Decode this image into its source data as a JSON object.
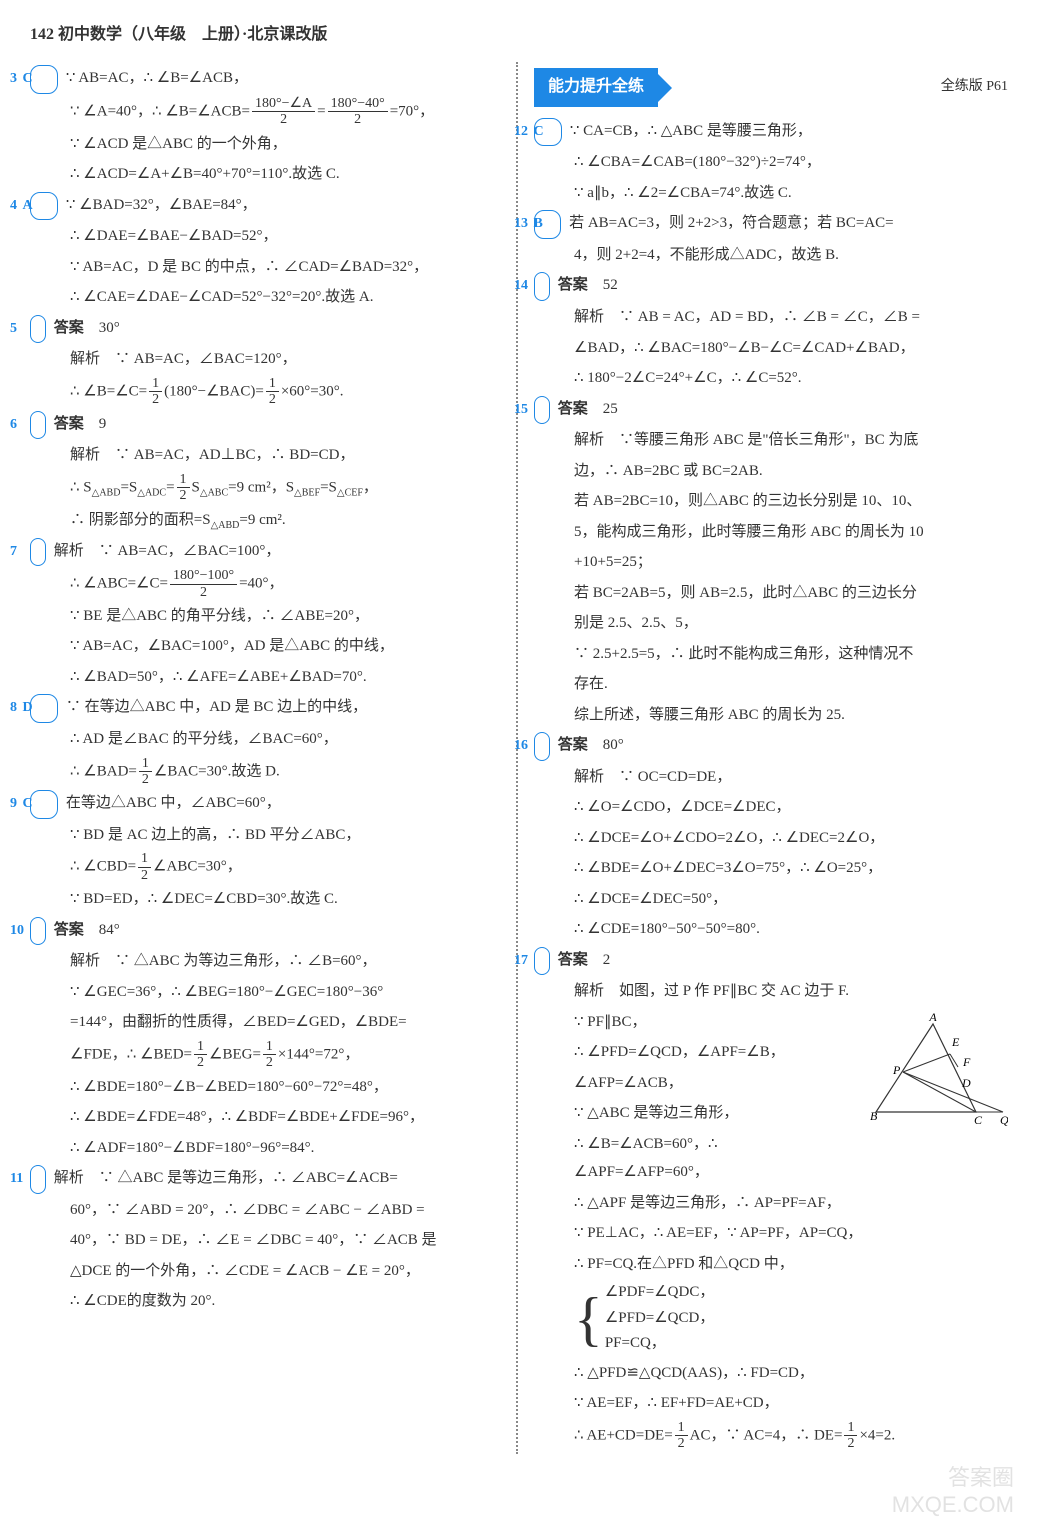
{
  "header": "142 初中数学（八年级　上册）·北京课改版",
  "banner": {
    "title": "能力提升全练",
    "right": "全练版 P61"
  },
  "left": [
    {
      "n": "3",
      "letter": "C",
      "lines": [
        "∵ AB=AC，∴ ∠B=∠ACB，",
        "∵ ∠A=40°，∴ ∠B=∠ACB=@FRAC{180°−∠A}{2}@=@FRAC{180°−40°}{2}@=70°，",
        "∵ ∠ACD 是△ABC 的一个外角，",
        "∴ ∠ACD=∠A+∠B=40°+70°=110°.故选 C."
      ]
    },
    {
      "n": "4",
      "letter": "A",
      "lines": [
        "∵ ∠BAD=32°，∠BAE=84°，",
        "∴ ∠DAE=∠BAE−∠BAD=52°，",
        "∵ AB=AC，D 是 BC 的中点，∴ ∠CAD=∠BAD=32°，",
        "∴ ∠CAE=∠DAE−∠CAD=52°−32°=20°.故选 A."
      ]
    },
    {
      "n": "5",
      "ans": "30°",
      "lines": [
        "解析　∵ AB=AC，∠BAC=120°，",
        "∴ ∠B=∠C=@FRAC{1}{2}@(180°−∠BAC)=@FRAC{1}{2}@×60°=30°."
      ]
    },
    {
      "n": "6",
      "ans": "9",
      "lines": [
        "解析　∵ AB=AC，AD⊥BC，∴ BD=CD，",
        "∴ S@SUB{△ABD}@=S@SUB{△ADC}@=@FRAC{1}{2}@S@SUB{△ABC}@=9 cm²，S@SUB{△BEF}@=S@SUB{△CEF}@，",
        "∴ 阴影部分的面积=S@SUB{△ABD}@=9 cm²."
      ]
    },
    {
      "n": "7",
      "lines": [
        "解析　∵ AB=AC，∠BAC=100°，",
        "∴ ∠ABC=∠C=@FRAC{180°−100°}{2}@=40°，",
        "∵ BE 是△ABC 的角平分线，∴ ∠ABE=20°，",
        "∵ AB=AC，∠BAC=100°，AD 是△ABC 的中线，",
        "∴ ∠BAD=50°，∴ ∠AFE=∠ABE+∠BAD=70°."
      ]
    },
    {
      "n": "8",
      "letter": "D",
      "lines": [
        "∵ 在等边△ABC 中，AD 是 BC 边上的中线，",
        "∴ AD 是∠BAC 的平分线，∠BAC=60°，",
        "∴ ∠BAD=@FRAC{1}{2}@∠BAC=30°.故选 D."
      ]
    },
    {
      "n": "9",
      "letter": "C",
      "lines": [
        "在等边△ABC 中，∠ABC=60°，",
        "∵ BD 是 AC 边上的高，∴ BD 平分∠ABC，",
        "∴ ∠CBD=@FRAC{1}{2}@∠ABC=30°，",
        "∵ BD=ED，∴ ∠DEC=∠CBD=30°.故选 C."
      ]
    },
    {
      "n": "10",
      "ans": "84°",
      "lines": [
        "解析　∵ △ABC 为等边三角形，∴ ∠B=60°，",
        "∵ ∠GEC=36°，∴ ∠BEG=180°−∠GEC=180°−36°",
        "=144°，由翻折的性质得，∠BED=∠GED，∠BDE=",
        "∠FDE，∴ ∠BED=@FRAC{1}{2}@∠BEG=@FRAC{1}{2}@×144°=72°，",
        "∴ ∠BDE=180°−∠B−∠BED=180°−60°−72°=48°，",
        "∴ ∠BDE=∠FDE=48°，∴ ∠BDF=∠BDE+∠FDE=96°，",
        "∴ ∠ADF=180°−∠BDF=180°−96°=84°."
      ]
    },
    {
      "n": "11",
      "lines": [
        "解析　∵ △ABC 是等边三角形，∴ ∠ABC=∠ACB=",
        "60°，∵ ∠ABD = 20°，∴ ∠DBC = ∠ABC − ∠ABD =",
        "40°，∵ BD = DE，∴ ∠E = ∠DBC = 40°，∵ ∠ACB 是",
        "△DCE 的一个外角，∴ ∠CDE = ∠ACB − ∠E = 20°，",
        "∴ ∠CDE的度数为 20°."
      ]
    }
  ],
  "right": [
    {
      "n": "12",
      "letter": "C",
      "lines": [
        "∵ CA=CB，∴ △ABC 是等腰三角形，",
        "∴ ∠CBA=∠CAB=(180°−32°)÷2=74°，",
        "∵ a∥b，∴ ∠2=∠CBA=74°.故选 C."
      ]
    },
    {
      "n": "13",
      "letter": "B",
      "lines": [
        "若 AB=AC=3，则 2+2>3，符合题意；若 BC=AC=",
        "4，则 2+2=4，不能形成△ADC，故选 B."
      ]
    },
    {
      "n": "14",
      "ans": "52",
      "lines": [
        "解析　∵ AB = AC，AD = BD，∴ ∠B = ∠C，∠B =",
        "∠BAD，∴ ∠BAC=180°−∠B−∠C=∠CAD+∠BAD，",
        "∴ 180°−2∠C=24°+∠C，∴ ∠C=52°."
      ]
    },
    {
      "n": "15",
      "ans": "25",
      "lines": [
        "解析　∵等腰三角形 ABC 是\"倍长三角形\"，BC 为底",
        "边，∴ AB=2BC 或 BC=2AB.",
        "若 AB=2BC=10，则△ABC 的三边长分别是 10、10、",
        "5，能构成三角形，此时等腰三角形 ABC 的周长为 10",
        "+10+5=25；",
        "若 BC=2AB=5，则 AB=2.5，此时△ABC 的三边长分",
        "别是 2.5、2.5、5，",
        "∵ 2.5+2.5=5，∴ 此时不能构成三角形，这种情况不",
        "存在.",
        "综上所述，等腰三角形 ABC 的周长为 25."
      ]
    },
    {
      "n": "16",
      "ans": "80°",
      "lines": [
        "解析　∵ OC=CD=DE，",
        "∴ ∠O=∠CDO，∠DCE=∠DEC，",
        "∴ ∠DCE=∠O+∠CDO=2∠O，∴ ∠DEC=2∠O，",
        "∴ ∠BDE=∠O+∠DEC=3∠O=75°，∴ ∠O=25°，",
        "∴ ∠DCE=∠DEC=50°，",
        "∴ ∠CDE=180°−50°−50°=80°."
      ]
    },
    {
      "n": "17",
      "ans": "2",
      "lines": [
        "解析　如图，过 P 作 PF∥BC 交 AC 边于 F.",
        "∵ PF∥BC，",
        "∴ ∠PFD=∠QCD，∠APF=∠B，",
        "∠AFP=∠ACB，",
        "∵ △ABC 是等边三角形，",
        "∴ ∠B=∠ACB=60°，∴ ∠APF=∠AFP=60°，",
        "∴ △APF 是等边三角形，∴ AP=PF=AF，",
        "∵ PE⊥AC，∴ AE=EF，∵ AP=PF，AP=CQ，",
        "∴ PF=CQ.在△PFD 和△QCD 中，",
        "@BRACE@",
        "∴ △PFD≌△QCD(AAS)，∴ FD=CD，",
        "∵ AE=EF，∴ EF+FD=AE+CD，",
        "∴ AE+CD=DE=@FRAC{1}{2}@AC，∵ AC=4，∴ DE=@FRAC{1}{2}@×4=2."
      ]
    }
  ],
  "brace_items": [
    "∠PDF=∠QDC，",
    "∠PFD=∠QCD，",
    "PF=CQ，"
  ],
  "diagram": {
    "labels": {
      "A": "A",
      "B": "B",
      "C": "C",
      "P": "P",
      "E": "E",
      "F": "F",
      "D": "D",
      "Q": "Q"
    }
  },
  "watermark": {
    "l1": "答案圈",
    "l2": "MXQE.COM"
  }
}
